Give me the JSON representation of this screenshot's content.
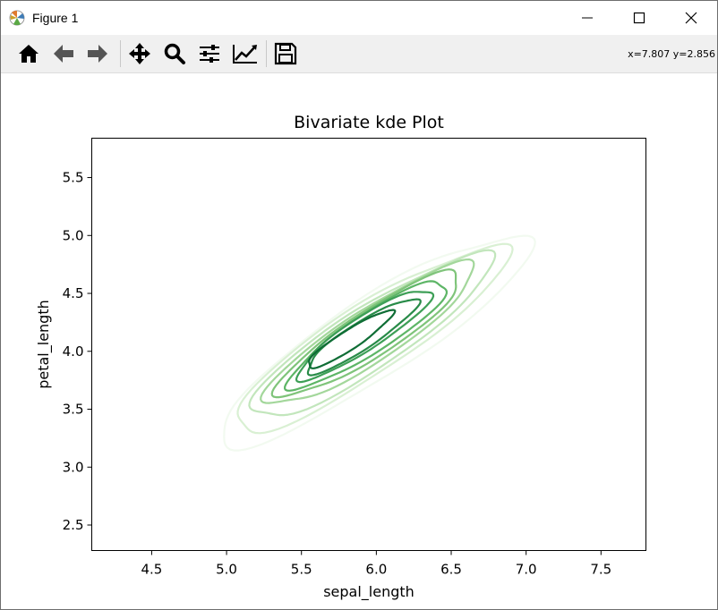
{
  "window": {
    "title": "Figure 1",
    "app_icon": "matplotlib-logo-icon",
    "controls": [
      "minimize-icon",
      "maximize-icon",
      "close-icon"
    ]
  },
  "toolbar": {
    "buttons": [
      {
        "name": "home",
        "icon": "home-icon"
      },
      {
        "name": "back",
        "icon": "arrow-left-icon"
      },
      {
        "name": "forward",
        "icon": "arrow-right-icon"
      },
      {
        "name": "pan",
        "icon": "move-arrows-icon"
      },
      {
        "name": "zoom",
        "icon": "magnifier-icon"
      },
      {
        "name": "configure-subplots",
        "icon": "sliders-icon"
      },
      {
        "name": "edit-axes",
        "icon": "trend-chart-icon"
      },
      {
        "name": "save",
        "icon": "floppy-disk-icon"
      }
    ],
    "coordinates": "x=7.807 y=2.856"
  },
  "chart_data": {
    "type": "kde-contour",
    "title": "Bivariate kde Plot",
    "xlabel": "sepal_length",
    "ylabel": "petal_length",
    "xlim": [
      4.1,
      7.8
    ],
    "ylim": [
      2.28,
      5.84
    ],
    "xticks": [
      4.5,
      5.0,
      5.5,
      6.0,
      6.5,
      7.0,
      7.5
    ],
    "xtick_labels": [
      "4.5",
      "5.0",
      "5.5",
      "6.0",
      "6.5",
      "7.0",
      "7.5"
    ],
    "yticks": [
      2.5,
      3.0,
      3.5,
      4.0,
      4.5,
      5.0,
      5.5
    ],
    "ytick_labels": [
      "2.5",
      "3.0",
      "3.5",
      "4.0",
      "4.5",
      "5.0",
      "5.5"
    ],
    "grid": false,
    "colormap": "Greens",
    "peak": {
      "x": 5.85,
      "y": 4.1
    },
    "levels": [
      {
        "level": 1,
        "color": "#f2faf0",
        "center": [
          5.98,
          4.1
        ],
        "sx": 0.98,
        "sy": 0.62
      },
      {
        "level": 2,
        "color": "#d9f0d3",
        "center": [
          5.95,
          4.1
        ],
        "sx": 0.86,
        "sy": 0.54
      },
      {
        "level": 3,
        "color": "#c2e6bc",
        "center": [
          5.96,
          4.12
        ],
        "sx": 0.76,
        "sy": 0.48
      },
      {
        "level": 4,
        "color": "#a3d79b",
        "center": [
          5.96,
          4.14
        ],
        "sx": 0.66,
        "sy": 0.41
      },
      {
        "level": 5,
        "color": "#7fc47a",
        "center": [
          5.96,
          4.15
        ],
        "sx": 0.58,
        "sy": 0.36
      },
      {
        "level": 6,
        "color": "#5db566",
        "center": [
          5.95,
          4.15
        ],
        "sx": 0.5,
        "sy": 0.31
      },
      {
        "level": 7,
        "color": "#3d9f56",
        "center": [
          5.92,
          4.15
        ],
        "sx": 0.42,
        "sy": 0.26
      },
      {
        "level": 8,
        "color": "#288b48",
        "center": [
          5.9,
          4.13
        ],
        "sx": 0.35,
        "sy": 0.21
      },
      {
        "level": 9,
        "color": "#0f6d35",
        "center": [
          5.82,
          4.1
        ],
        "sx": 0.27,
        "sy": 0.15
      }
    ]
  }
}
